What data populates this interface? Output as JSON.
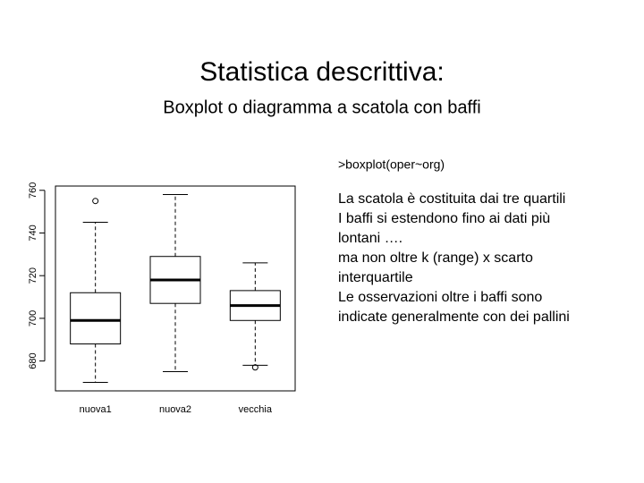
{
  "title": "Statistica descrittiva:",
  "subtitle": "Boxplot o diagramma a scatola con baffi",
  "command": ">boxplot(oper~org)",
  "notes": [
    "La scatola è costituita dai tre quartili",
    "I baffi si estendono fino ai dati più",
    "lontani ….",
    "ma non oltre k (range) x scarto",
    "interquartile",
    "Le osservazioni oltre i baffi sono",
    "indicate generalmente con dei pallini"
  ],
  "chart_data": {
    "type": "box",
    "categories": [
      "nuova1",
      "nuova2",
      "vecchia"
    ],
    "boxes": [
      {
        "min": 670,
        "q1": 688,
        "median": 699,
        "q3": 712,
        "max": 745,
        "outliers": [
          755
        ]
      },
      {
        "min": 675,
        "q1": 707,
        "median": 718,
        "q3": 729,
        "max": 758,
        "outliers": []
      },
      {
        "min": 678,
        "q1": 699,
        "median": 706,
        "q3": 713,
        "max": 726,
        "outliers": [
          677
        ]
      }
    ],
    "ylim": [
      666,
      762
    ],
    "yticks": [
      680,
      700,
      720,
      740,
      760
    ]
  }
}
